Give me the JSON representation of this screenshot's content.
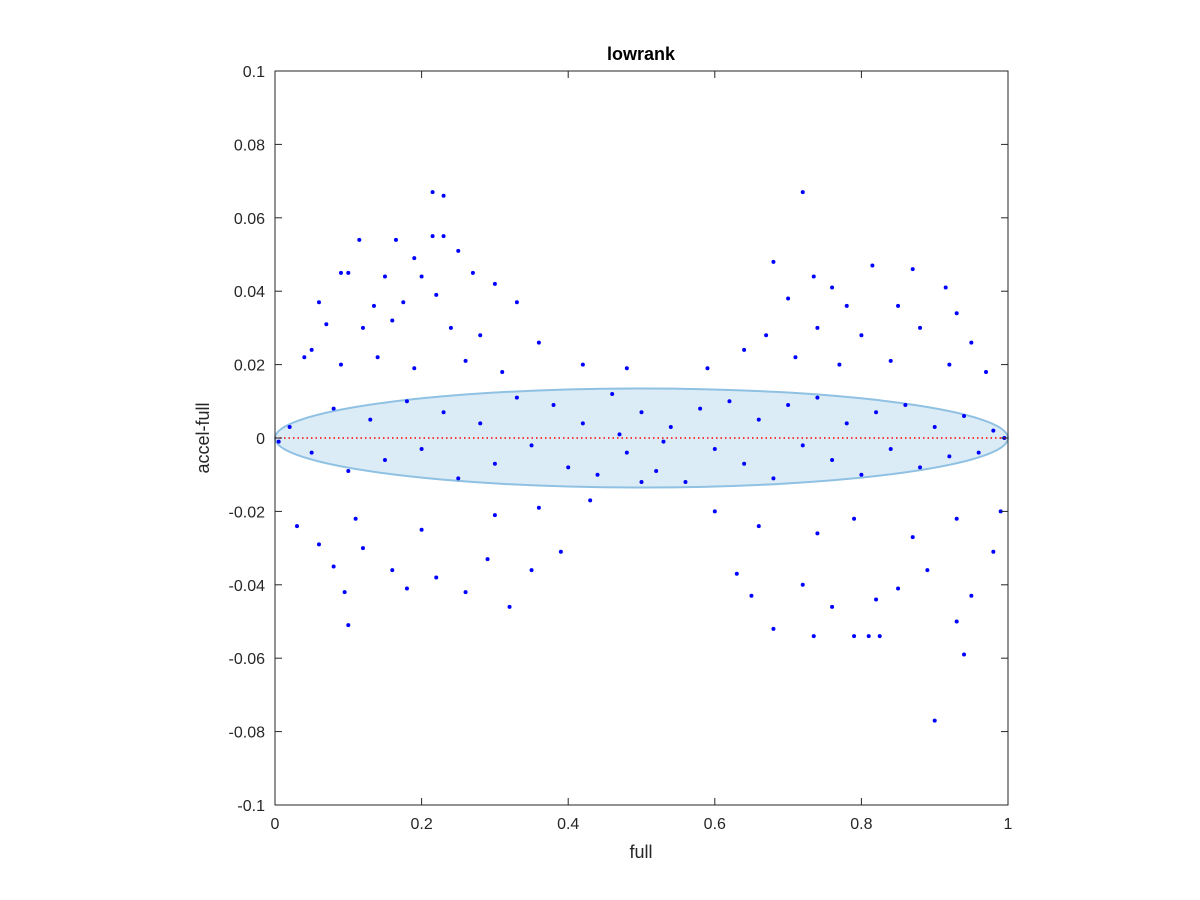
{
  "chart_data": {
    "type": "scatter",
    "title": "lowrank",
    "xlabel": "full",
    "ylabel": "accel-full",
    "xlim": [
      0,
      1
    ],
    "ylim": [
      -0.1,
      0.1
    ],
    "xticks": [
      "0",
      "0.2",
      "0.4",
      "0.6",
      "0.8",
      "1"
    ],
    "yticks": [
      "-0.1",
      "-0.08",
      "-0.06",
      "-0.04",
      "-0.02",
      "0",
      "0.02",
      "0.04",
      "0.06",
      "0.08",
      "0.1"
    ],
    "grid": false,
    "box": true,
    "colors": {
      "points": "#0000ff",
      "zero_line": "#ff0000",
      "ellipse_fill": "#d6e9f5",
      "ellipse_edge": "#8fc1e3",
      "axis": "#262626"
    },
    "band": {
      "shape": "ellipse",
      "center": [
        0.5,
        0.0
      ],
      "x_half_width": 0.5,
      "y_half_height": 0.0135
    },
    "reference_line": {
      "y": 0,
      "style": "dotted",
      "color": "#ff0000"
    },
    "series": [
      {
        "marker": "dot",
        "color": "#0000ff",
        "points": [
          [
            0.215,
            0.067
          ],
          [
            0.23,
            0.066
          ],
          [
            0.72,
            0.067
          ],
          [
            0.115,
            0.054
          ],
          [
            0.165,
            0.054
          ],
          [
            0.215,
            0.055
          ],
          [
            0.23,
            0.055
          ],
          [
            0.25,
            0.051
          ],
          [
            0.19,
            0.049
          ],
          [
            0.9,
            -0.077
          ],
          [
            0.94,
            -0.059
          ],
          [
            0.32,
            -0.046
          ],
          [
            0.1,
            -0.051
          ],
          [
            0.68,
            -0.052
          ],
          [
            0.735,
            -0.054
          ],
          [
            0.79,
            -0.054
          ],
          [
            0.81,
            -0.054
          ],
          [
            0.825,
            -0.054
          ],
          [
            0.93,
            -0.05
          ],
          [
            0.68,
            0.048
          ],
          [
            0.815,
            0.047
          ],
          [
            0.87,
            0.046
          ],
          [
            0.09,
            0.045
          ],
          [
            0.1,
            0.045
          ],
          [
            0.15,
            0.044
          ],
          [
            0.2,
            0.044
          ],
          [
            0.27,
            0.045
          ],
          [
            0.3,
            0.042
          ],
          [
            0.735,
            0.044
          ],
          [
            0.76,
            0.041
          ],
          [
            0.915,
            0.041
          ],
          [
            0.06,
            0.037
          ],
          [
            0.135,
            0.036
          ],
          [
            0.175,
            0.037
          ],
          [
            0.22,
            0.039
          ],
          [
            0.33,
            0.037
          ],
          [
            0.7,
            0.038
          ],
          [
            0.78,
            0.036
          ],
          [
            0.85,
            0.036
          ],
          [
            0.93,
            0.034
          ],
          [
            0.05,
            0.024
          ],
          [
            0.07,
            0.031
          ],
          [
            0.12,
            0.03
          ],
          [
            0.16,
            0.032
          ],
          [
            0.24,
            0.03
          ],
          [
            0.28,
            0.028
          ],
          [
            0.36,
            0.026
          ],
          [
            0.67,
            0.028
          ],
          [
            0.74,
            0.03
          ],
          [
            0.8,
            0.028
          ],
          [
            0.88,
            0.03
          ],
          [
            0.95,
            0.026
          ],
          [
            0.04,
            0.022
          ],
          [
            0.09,
            0.02
          ],
          [
            0.14,
            0.022
          ],
          [
            0.19,
            0.019
          ],
          [
            0.26,
            0.021
          ],
          [
            0.31,
            0.018
          ],
          [
            0.42,
            0.02
          ],
          [
            0.48,
            0.019
          ],
          [
            0.59,
            0.019
          ],
          [
            0.64,
            0.024
          ],
          [
            0.71,
            0.022
          ],
          [
            0.77,
            0.02
          ],
          [
            0.84,
            0.021
          ],
          [
            0.92,
            0.02
          ],
          [
            0.97,
            0.018
          ],
          [
            0.06,
            -0.029
          ],
          [
            0.08,
            -0.035
          ],
          [
            0.095,
            -0.042
          ],
          [
            0.12,
            -0.03
          ],
          [
            0.16,
            -0.036
          ],
          [
            0.18,
            -0.041
          ],
          [
            0.22,
            -0.038
          ],
          [
            0.26,
            -0.042
          ],
          [
            0.29,
            -0.033
          ],
          [
            0.35,
            -0.036
          ],
          [
            0.39,
            -0.031
          ],
          [
            0.63,
            -0.037
          ],
          [
            0.65,
            -0.043
          ],
          [
            0.72,
            -0.04
          ],
          [
            0.76,
            -0.046
          ],
          [
            0.82,
            -0.044
          ],
          [
            0.85,
            -0.041
          ],
          [
            0.89,
            -0.036
          ],
          [
            0.95,
            -0.043
          ],
          [
            0.98,
            -0.031
          ],
          [
            0.03,
            -0.024
          ],
          [
            0.11,
            -0.022
          ],
          [
            0.2,
            -0.025
          ],
          [
            0.3,
            -0.021
          ],
          [
            0.36,
            -0.019
          ],
          [
            0.43,
            -0.017
          ],
          [
            0.6,
            -0.02
          ],
          [
            0.66,
            -0.024
          ],
          [
            0.74,
            -0.026
          ],
          [
            0.79,
            -0.022
          ],
          [
            0.87,
            -0.027
          ],
          [
            0.93,
            -0.022
          ],
          [
            0.99,
            -0.02
          ],
          [
            0.02,
            0.003
          ],
          [
            0.05,
            -0.004
          ],
          [
            0.08,
            0.008
          ],
          [
            0.1,
            -0.009
          ],
          [
            0.13,
            0.005
          ],
          [
            0.15,
            -0.006
          ],
          [
            0.18,
            0.01
          ],
          [
            0.2,
            -0.003
          ],
          [
            0.23,
            0.007
          ],
          [
            0.25,
            -0.011
          ],
          [
            0.28,
            0.004
          ],
          [
            0.3,
            -0.007
          ],
          [
            0.33,
            0.011
          ],
          [
            0.35,
            -0.002
          ],
          [
            0.38,
            0.009
          ],
          [
            0.4,
            -0.008
          ],
          [
            0.42,
            0.004
          ],
          [
            0.44,
            -0.01
          ],
          [
            0.46,
            0.012
          ],
          [
            0.48,
            -0.004
          ],
          [
            0.5,
            0.007
          ],
          [
            0.52,
            -0.009
          ],
          [
            0.54,
            0.003
          ],
          [
            0.56,
            -0.012
          ],
          [
            0.58,
            0.008
          ],
          [
            0.6,
            -0.003
          ],
          [
            0.62,
            0.01
          ],
          [
            0.64,
            -0.007
          ],
          [
            0.66,
            0.005
          ],
          [
            0.68,
            -0.011
          ],
          [
            0.7,
            0.009
          ],
          [
            0.72,
            -0.002
          ],
          [
            0.74,
            0.011
          ],
          [
            0.76,
            -0.006
          ],
          [
            0.78,
            0.004
          ],
          [
            0.8,
            -0.01
          ],
          [
            0.82,
            0.007
          ],
          [
            0.84,
            -0.003
          ],
          [
            0.86,
            0.009
          ],
          [
            0.88,
            -0.008
          ],
          [
            0.9,
            0.003
          ],
          [
            0.92,
            -0.005
          ],
          [
            0.94,
            0.006
          ],
          [
            0.96,
            -0.004
          ],
          [
            0.98,
            0.002
          ],
          [
            0.995,
            0.0
          ],
          [
            0.005,
            -0.001
          ],
          [
            0.47,
            0.001
          ],
          [
            0.53,
            -0.001
          ],
          [
            0.5,
            -0.012
          ]
        ]
      }
    ]
  }
}
